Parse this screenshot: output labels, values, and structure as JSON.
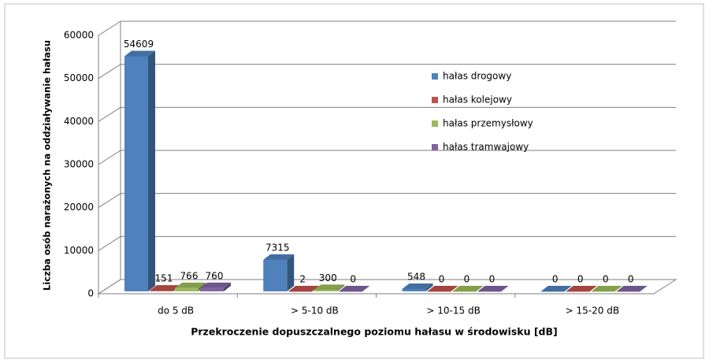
{
  "chart_data": {
    "type": "bar3d",
    "y_label": "Liczba osób narażonych  na oddziaływanie  hałasu",
    "x_label": "Przekroczenie dopuszczalnego  poziomu hałasu  w środowisku [dB]",
    "categories": [
      "do 5 dB",
      "> 5-10 dB",
      "> 10-15 dB",
      "> 15-20 dB"
    ],
    "series": [
      {
        "name": "hałas drogowy",
        "color": "#4f81bd",
        "values": [
          54609,
          7315,
          548,
          0
        ]
      },
      {
        "name": "hałas kolejowy",
        "color": "#c0504d",
        "values": [
          151,
          2,
          0,
          0
        ]
      },
      {
        "name": "hałas przemysłowy",
        "color": "#9bbb59",
        "values": [
          766,
          300,
          0,
          0
        ]
      },
      {
        "name": "hałas tramwajowy",
        "color": "#8064a2",
        "values": [
          760,
          0,
          0,
          0
        ]
      }
    ],
    "ylim": [
      0,
      60000
    ],
    "yticks": [
      0,
      10000,
      20000,
      30000,
      40000,
      50000,
      60000
    ],
    "grid": true
  }
}
